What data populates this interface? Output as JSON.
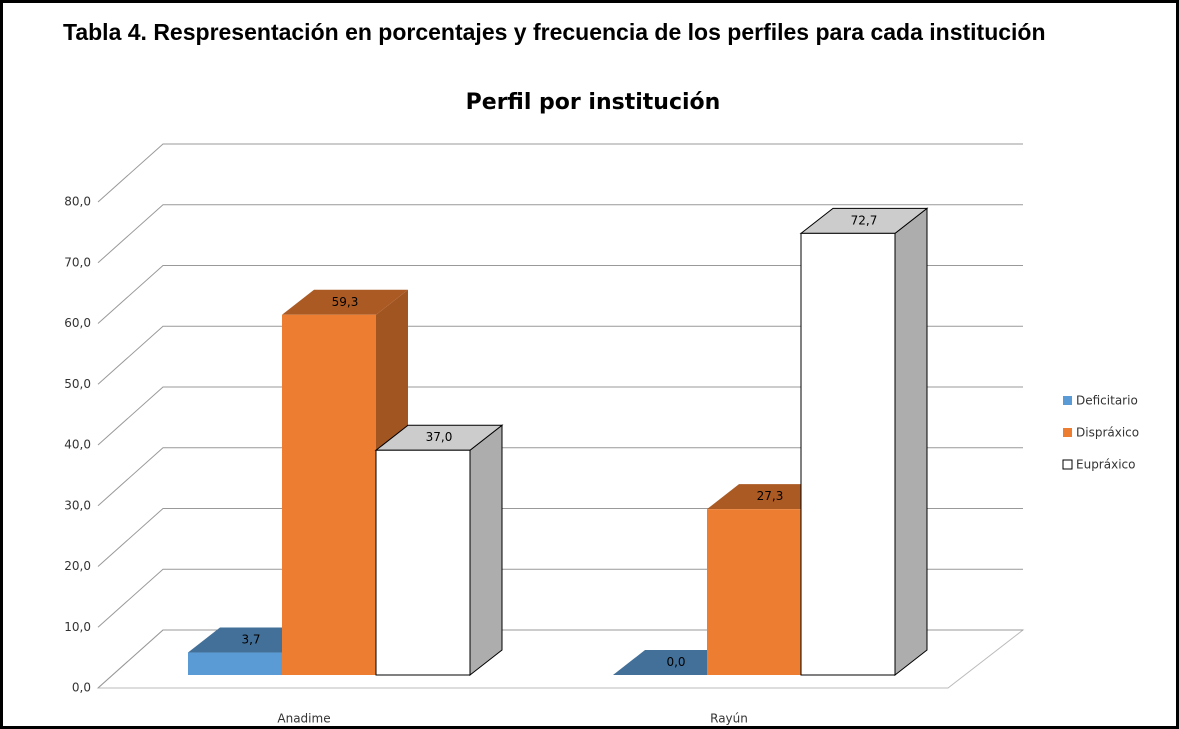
{
  "chart_data": {
    "type": "bar3d",
    "caption": "Tabla 4. Respresentación en porcentajes y frecuencia de los perfiles para cada institución",
    "title": "Perfil por institución",
    "categories": [
      "Anadime",
      "Rayún"
    ],
    "series": [
      {
        "name": "Deficitario",
        "color": "#5b9bd5",
        "values": [
          3.7,
          0.0
        ],
        "value_labels": [
          "3,7",
          "0,0"
        ]
      },
      {
        "name": "Dispráxico",
        "color": "#ed7d31",
        "values": [
          59.3,
          27.3
        ],
        "value_labels": [
          "59,3",
          "27,3"
        ]
      },
      {
        "name": "Eupráxico",
        "color": "#ffffff",
        "values": [
          37.0,
          72.7
        ],
        "value_labels": [
          "37,0",
          "72,7"
        ]
      }
    ],
    "ylim": [
      0,
      80
    ],
    "yticks": [
      {
        "value": 0,
        "label": "0,0"
      },
      {
        "value": 10,
        "label": "10,0"
      },
      {
        "value": 20,
        "label": "20,0"
      },
      {
        "value": 30,
        "label": "30,0"
      },
      {
        "value": 40,
        "label": "40,0"
      },
      {
        "value": 50,
        "label": "50,0"
      },
      {
        "value": 60,
        "label": "60,0"
      },
      {
        "value": 70,
        "label": "70,0"
      },
      {
        "value": 80,
        "label": "80,0"
      }
    ],
    "grid": true,
    "legend": "right"
  }
}
